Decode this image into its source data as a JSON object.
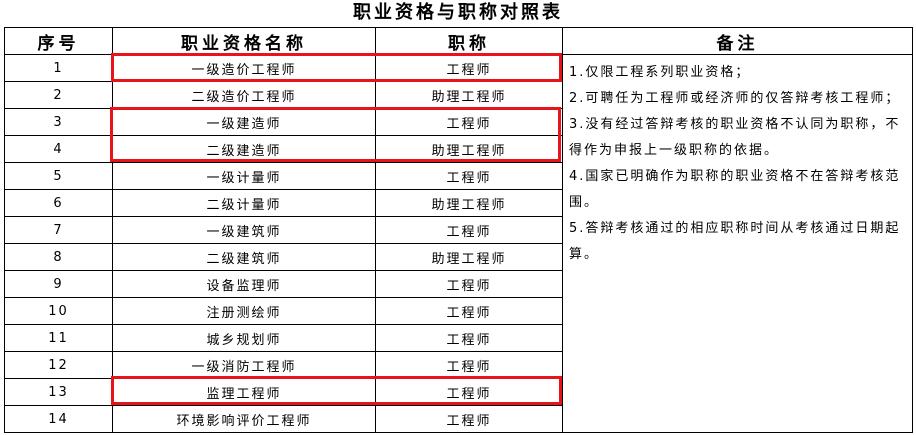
{
  "title": "职业资格与职称对照表",
  "columns": [
    "序号",
    "职业资格名称",
    "职称",
    "备注"
  ],
  "rows": [
    {
      "no": "1",
      "qualification": "一级造价工程师",
      "title": "工程师"
    },
    {
      "no": "2",
      "qualification": "二级造价工程师",
      "title": "助理工程师"
    },
    {
      "no": "3",
      "qualification": "一级建造师",
      "title": "工程师"
    },
    {
      "no": "4",
      "qualification": "二级建造师",
      "title": "助理工程师"
    },
    {
      "no": "5",
      "qualification": "一级计量师",
      "title": "工程师"
    },
    {
      "no": "6",
      "qualification": "二级计量师",
      "title": "助理工程师"
    },
    {
      "no": "7",
      "qualification": "一级建筑师",
      "title": "工程师"
    },
    {
      "no": "8",
      "qualification": "二级建筑师",
      "title": "助理工程师"
    },
    {
      "no": "9",
      "qualification": "设备监理师",
      "title": "工程师"
    },
    {
      "no": "10",
      "qualification": "注册测绘师",
      "title": "工程师"
    },
    {
      "no": "11",
      "qualification": "城乡规划师",
      "title": "工程师"
    },
    {
      "no": "12",
      "qualification": "一级消防工程师",
      "title": "工程师"
    },
    {
      "no": "13",
      "qualification": "监理工程师",
      "title": "工程师"
    },
    {
      "no": "14",
      "qualification": "环境影响评价工程师",
      "title": "工程师"
    }
  ],
  "notes": [
    "1.仅限工程系列职业资格；",
    "2.可聘任为工程师或经济师的仅答辩考核工程师；",
    "3.没有经过答辩考核的职业资格不认同为职称，不得作为申报上一级职称的依据。",
    "4.国家已明确作为职称的职业资格不在答辩考核范围。",
    "5.答辩考核通过的相应职称时间从考核通过日期起算。"
  ],
  "highlight_color": "#e8141b",
  "highlighted_rows": [
    "1",
    "3",
    "4",
    "13"
  ]
}
